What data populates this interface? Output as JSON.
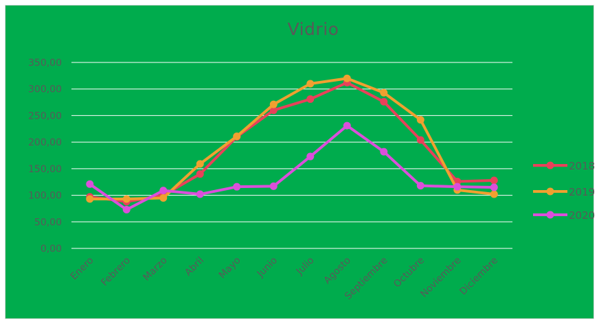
{
  "chart_data": {
    "type": "line",
    "title": "Vidrio",
    "categories": [
      "Enero",
      "Febrero",
      "Marzo",
      "Abril",
      "Mayo",
      "Junio",
      "Julio",
      "Agosto",
      "Septiembre",
      "Octubre",
      "Noviembre",
      "Diciembre"
    ],
    "y_ticks": [
      "0,00",
      "50,00",
      "100,00",
      "150,00",
      "200,00",
      "250,00",
      "300,00",
      "350,00"
    ],
    "ylim": [
      0,
      350
    ],
    "grid": true,
    "legend_position": "right",
    "background_color": "#00ac4d",
    "series": [
      {
        "name": "2018",
        "color": "#e8415a",
        "values": [
          97,
          88,
          100,
          140,
          210,
          260,
          281,
          312,
          276,
          204,
          126,
          128
        ]
      },
      {
        "name": "2019",
        "color": "#f0a030",
        "values": [
          93,
          93,
          95,
          159,
          211,
          271,
          310,
          320,
          293,
          242,
          110,
          102
        ]
      },
      {
        "name": "2020",
        "color": "#db4fdb",
        "values": [
          121,
          73,
          109,
          102,
          116,
          117,
          173,
          231,
          182,
          118,
          116,
          115
        ]
      }
    ]
  }
}
